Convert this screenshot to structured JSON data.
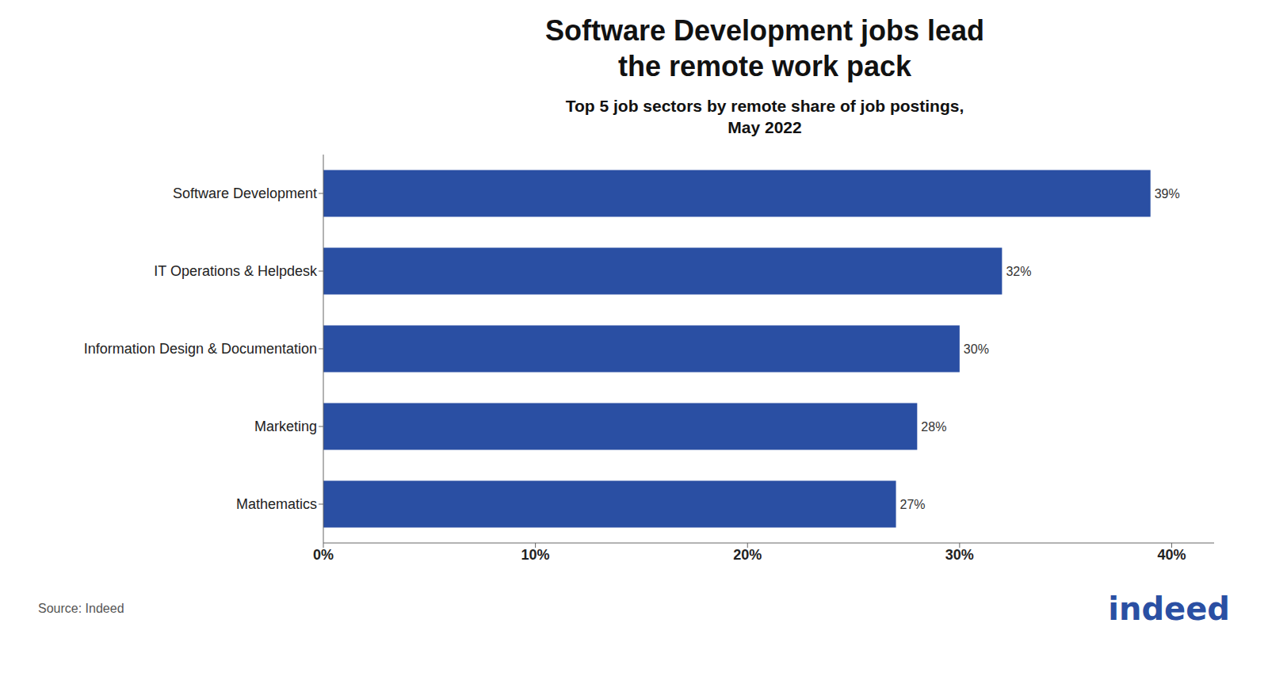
{
  "chart_data": {
    "type": "bar",
    "orientation": "horizontal",
    "title": "Software Development jobs lead\nthe remote work pack",
    "subtitle": "Top 5 job sectors by remote share of job postings,\nMay 2022",
    "categories": [
      "Mathematics",
      "Marketing",
      "Information Design & Documentation",
      "IT Operations & Helpdesk",
      "Software Development"
    ],
    "values": [
      27,
      28,
      30,
      32,
      39
    ],
    "value_labels": [
      "27%",
      "28%",
      "30%",
      "32%",
      "39%"
    ],
    "data_labels": true,
    "color": "#2a4fa3",
    "xlim": [
      0,
      42
    ],
    "xticks": [
      {
        "value": 0,
        "label": "0%"
      },
      {
        "value": 10,
        "label": "10%"
      },
      {
        "value": 20,
        "label": "20%"
      },
      {
        "value": 30,
        "label": "30%"
      },
      {
        "value": 40,
        "label": "40%"
      }
    ],
    "grid": false,
    "annotations": [
      "Source: Indeed",
      "indeed"
    ]
  }
}
